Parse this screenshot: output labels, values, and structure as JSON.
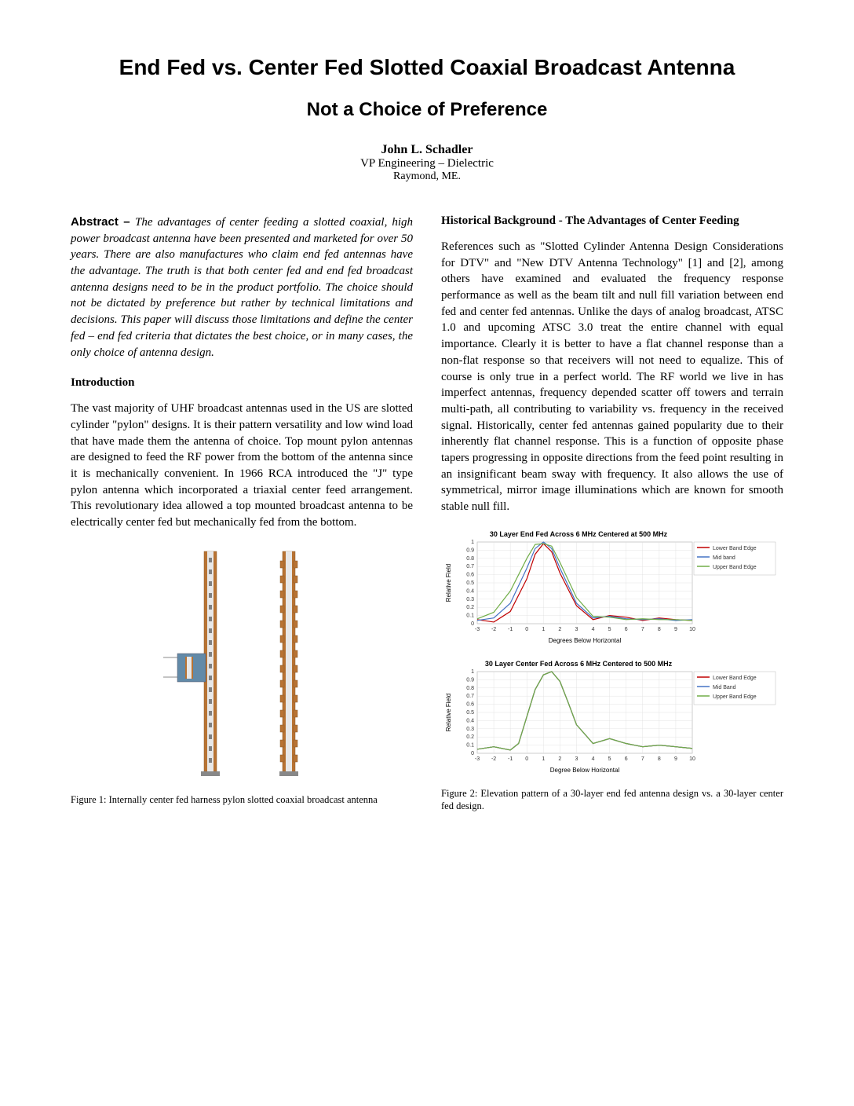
{
  "title": "End Fed vs. Center Fed Slotted Coaxial Broadcast Antenna",
  "subtitle": "Not a Choice of Preference",
  "author": "John L. Schadler",
  "affiliation": "VP Engineering – Dielectric",
  "location": "Raymond, ME.",
  "left": {
    "abstract_label": "Abstract – ",
    "abstract": "The advantages of center feeding a slotted coaxial, high power broadcast antenna have been presented and marketed for over 50 years. There are also manufactures who claim end fed antennas have the advantage. The truth is that both center fed and end fed broadcast antenna designs need to be in the product portfolio. The choice should not be dictated by preference but rather by technical limitations and decisions. This paper will discuss those limitations and define the center fed – end fed criteria that dictates the best choice, or in many cases, the only choice of antenna design.",
    "intro_heading": "Introduction",
    "intro_text": "The vast majority of UHF broadcast antennas used in the US are slotted cylinder \"pylon\" designs. It is their pattern versatility and low wind load that have made them the antenna of choice. Top mount pylon antennas are designed to feed the RF power from the bottom of the antenna since it is mechanically convenient. In 1966 RCA introduced the \"J\" type pylon antenna which incorporated a triaxial center feed arrangement. This revolutionary idea allowed a top mounted broadcast antenna to be electrically center fed but mechanically fed from the bottom.",
    "fig1_caption": "Figure 1: Internally center fed harness pylon slotted coaxial broadcast antenna"
  },
  "right": {
    "hist_heading": "Historical Background - The Advantages of Center Feeding",
    "hist_text": "References such as \"Slotted Cylinder Antenna Design Considerations for DTV\" and \"New DTV Antenna Technology\" [1] and [2], among others have examined and evaluated the frequency response performance as well as the beam tilt and null fill variation between end fed and center fed antennas. Unlike the days of analog broadcast, ATSC 1.0 and upcoming ATSC 3.0 treat the entire channel with equal importance. Clearly it is better to have a flat channel response than a non-flat response so that receivers will not need to equalize. This of course is only true in a perfect world. The RF world we live in has imperfect antennas, frequency depended scatter off towers and terrain multi-path, all contributing to variability vs. frequency in the received signal. Historically, center fed antennas gained popularity due to their inherently flat channel response. This is a function of opposite phase tapers progressing in opposite directions from the feed point resulting in an insignificant beam sway with frequency. It also allows the use of symmetrical, mirror image illuminations which are known for smooth stable null fill.",
    "fig2_caption": "Figure 2: Elevation pattern of a 30-layer end fed antenna design vs. a 30-layer center fed design.",
    "chart1": {
      "title": "30 Layer End Fed Across 6 MHz Centered at 500 MHz",
      "xlabel": "Degrees Below Horizontal",
      "ylabel": "Relative Field",
      "xlim": [
        -3,
        10
      ],
      "ylim": [
        0,
        1
      ],
      "xticks": [
        -3,
        -2,
        -1,
        0,
        1,
        2,
        3,
        4,
        5,
        6,
        7,
        8,
        9,
        10
      ],
      "yticks": [
        0,
        0.1,
        0.2,
        0.3,
        0.4,
        0.5,
        0.6,
        0.7,
        0.8,
        0.9,
        1
      ],
      "legend": [
        "Lower Band Edge",
        "Mid band",
        "Upper Band Edge"
      ],
      "colors": [
        "#c00000",
        "#4472c4",
        "#70ad47"
      ],
      "series": [
        [
          [
            -3,
            0.05
          ],
          [
            -2,
            0.02
          ],
          [
            -1,
            0.15
          ],
          [
            0,
            0.55
          ],
          [
            0.5,
            0.85
          ],
          [
            1,
            0.98
          ],
          [
            1.5,
            0.88
          ],
          [
            2,
            0.62
          ],
          [
            3,
            0.22
          ],
          [
            4,
            0.05
          ],
          [
            5,
            0.1
          ],
          [
            6,
            0.08
          ],
          [
            7,
            0.04
          ],
          [
            8,
            0.07
          ],
          [
            9,
            0.05
          ],
          [
            10,
            0.04
          ]
        ],
        [
          [
            -3,
            0.04
          ],
          [
            -2,
            0.07
          ],
          [
            -1,
            0.25
          ],
          [
            0,
            0.68
          ],
          [
            0.5,
            0.92
          ],
          [
            1,
            1.0
          ],
          [
            1.5,
            0.92
          ],
          [
            2,
            0.68
          ],
          [
            3,
            0.25
          ],
          [
            4,
            0.07
          ],
          [
            5,
            0.09
          ],
          [
            6,
            0.06
          ],
          [
            7,
            0.05
          ],
          [
            8,
            0.06
          ],
          [
            9,
            0.04
          ],
          [
            10,
            0.05
          ]
        ],
        [
          [
            -3,
            0.06
          ],
          [
            -2,
            0.14
          ],
          [
            -1,
            0.4
          ],
          [
            0,
            0.8
          ],
          [
            0.5,
            0.97
          ],
          [
            1,
            0.98
          ],
          [
            1.5,
            0.95
          ],
          [
            2,
            0.75
          ],
          [
            3,
            0.32
          ],
          [
            4,
            0.09
          ],
          [
            5,
            0.08
          ],
          [
            6,
            0.05
          ],
          [
            7,
            0.06
          ],
          [
            8,
            0.05
          ],
          [
            9,
            0.05
          ],
          [
            10,
            0.04
          ]
        ]
      ]
    },
    "chart2": {
      "title": "30 Layer Center Fed Across 6 MHz Centered to 500 MHz",
      "xlabel": "Degree Below Horizontal",
      "ylabel": "Relative Field",
      "xlim": [
        -3,
        10
      ],
      "ylim": [
        0,
        1
      ],
      "xticks": [
        -3,
        -2,
        -1,
        0,
        1,
        2,
        3,
        4,
        5,
        6,
        7,
        8,
        9,
        10
      ],
      "yticks": [
        0,
        0.1,
        0.2,
        0.3,
        0.4,
        0.5,
        0.6,
        0.7,
        0.8,
        0.9,
        1
      ],
      "legend": [
        "Lower Band Edge",
        "Mid Band",
        "Upper Band Edge"
      ],
      "colors": [
        "#c00000",
        "#4472c4",
        "#70ad47"
      ],
      "series": [
        [
          [
            -3,
            0.05
          ],
          [
            -2,
            0.08
          ],
          [
            -1,
            0.04
          ],
          [
            -0.5,
            0.12
          ],
          [
            0,
            0.45
          ],
          [
            0.5,
            0.78
          ],
          [
            1,
            0.96
          ],
          [
            1.5,
            1.0
          ],
          [
            2,
            0.88
          ],
          [
            2.5,
            0.62
          ],
          [
            3,
            0.35
          ],
          [
            4,
            0.12
          ],
          [
            5,
            0.18
          ],
          [
            6,
            0.12
          ],
          [
            7,
            0.08
          ],
          [
            8,
            0.1
          ],
          [
            9,
            0.08
          ],
          [
            10,
            0.06
          ]
        ],
        [
          [
            -3,
            0.05
          ],
          [
            -2,
            0.08
          ],
          [
            -1,
            0.04
          ],
          [
            -0.5,
            0.12
          ],
          [
            0,
            0.45
          ],
          [
            0.5,
            0.78
          ],
          [
            1,
            0.96
          ],
          [
            1.5,
            1.0
          ],
          [
            2,
            0.88
          ],
          [
            2.5,
            0.62
          ],
          [
            3,
            0.35
          ],
          [
            4,
            0.12
          ],
          [
            5,
            0.18
          ],
          [
            6,
            0.12
          ],
          [
            7,
            0.08
          ],
          [
            8,
            0.1
          ],
          [
            9,
            0.08
          ],
          [
            10,
            0.06
          ]
        ],
        [
          [
            -3,
            0.05
          ],
          [
            -2,
            0.08
          ],
          [
            -1,
            0.04
          ],
          [
            -0.5,
            0.12
          ],
          [
            0,
            0.45
          ],
          [
            0.5,
            0.78
          ],
          [
            1,
            0.96
          ],
          [
            1.5,
            1.0
          ],
          [
            2,
            0.88
          ],
          [
            2.5,
            0.62
          ],
          [
            3,
            0.35
          ],
          [
            4,
            0.12
          ],
          [
            5,
            0.18
          ],
          [
            6,
            0.12
          ],
          [
            7,
            0.08
          ],
          [
            8,
            0.1
          ],
          [
            9,
            0.08
          ],
          [
            10,
            0.06
          ]
        ]
      ]
    }
  },
  "antenna": {
    "outer_color": "#b87333",
    "inner_color": "#e8e8e8",
    "slot_color": "#808080",
    "detail_bg": "#628aa8",
    "bracket_color": "#888888"
  }
}
